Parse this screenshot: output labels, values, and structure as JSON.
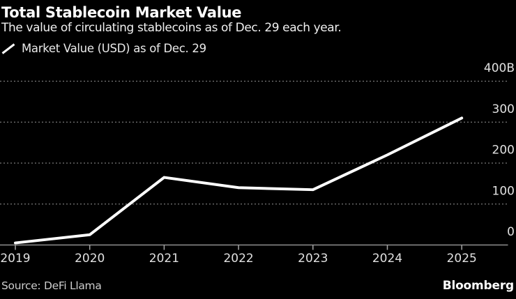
{
  "header": {
    "title": "Total Stablecoin Market Value",
    "subtitle": "The value of circulating stablecoins as of Dec. 29 each year."
  },
  "footer": {
    "source": "Source: DeFi Llama",
    "brand": "Bloomberg"
  },
  "colors": {
    "background": "#000000",
    "title": "#ffffff",
    "subtitle": "#f0f0f0",
    "legend_text": "#eaeaea",
    "line": "#ffffff",
    "gridline": "#7a7a7a",
    "axis": "#a6a6a6",
    "tick_label": "#e0e0e0",
    "source_text": "#cdcdcd"
  },
  "chart_data": {
    "type": "line",
    "title": "Total Stablecoin Market Value",
    "subtitle": "The value of circulating stablecoins as of Dec. 29 each year.",
    "categories": [
      "2019",
      "2020",
      "2021",
      "2022",
      "2023",
      "2024",
      "2025"
    ],
    "series": [
      {
        "name": "Market Value (USD) as of Dec. 29",
        "values": [
          5,
          25,
          165,
          140,
          135,
          220,
          310
        ]
      }
    ],
    "unit": "USD billions",
    "ylim": [
      0,
      445
    ],
    "y_ticks": [
      {
        "value": 0,
        "label": "0"
      },
      {
        "value": 100,
        "label": "100"
      },
      {
        "value": 200,
        "label": "200"
      },
      {
        "value": 300,
        "label": "300"
      },
      {
        "value": 400,
        "label": "400B"
      }
    ],
    "grid": "horizontal-dotted",
    "legend_position": "top-left",
    "y_axis_side": "right"
  }
}
